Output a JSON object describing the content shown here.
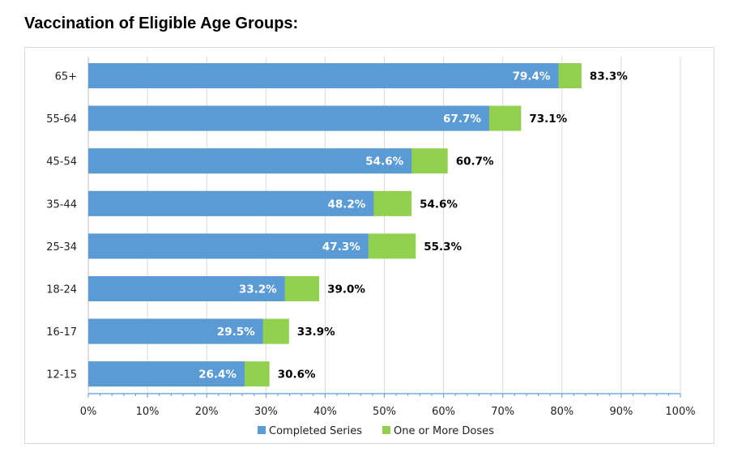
{
  "page_title": "Vaccination of Eligible Age Groups:",
  "chart_data": {
    "type": "bar",
    "orientation": "horizontal",
    "title": "Vaccination of Eligible Age Groups:",
    "categories": [
      "65+",
      "55-64",
      "45-54",
      "35-44",
      "25-34",
      "18-24",
      "16-17",
      "12-15"
    ],
    "series": [
      {
        "name": "Completed Series",
        "color": "#5b9bd5",
        "values": [
          79.4,
          67.7,
          54.6,
          48.2,
          47.3,
          33.2,
          29.5,
          26.4
        ],
        "labels": [
          "79.4%",
          "67.7%",
          "54.6%",
          "48.2%",
          "47.3%",
          "33.2%",
          "29.5%",
          "26.4%"
        ]
      },
      {
        "name": "One or More Doses",
        "color": "#92d050",
        "values": [
          83.3,
          73.1,
          60.7,
          54.6,
          55.3,
          39.0,
          33.9,
          30.6
        ],
        "labels": [
          "83.3%",
          "73.1%",
          "60.7%",
          "54.6%",
          "55.3%",
          "39.0%",
          "33.9%",
          "30.6%"
        ]
      }
    ],
    "xlim": [
      0,
      100
    ],
    "xticks": [
      "0%",
      "10%",
      "20%",
      "30%",
      "40%",
      "50%",
      "60%",
      "70%",
      "80%",
      "90%",
      "100%"
    ],
    "grid": true,
    "legend_position": "bottom"
  }
}
